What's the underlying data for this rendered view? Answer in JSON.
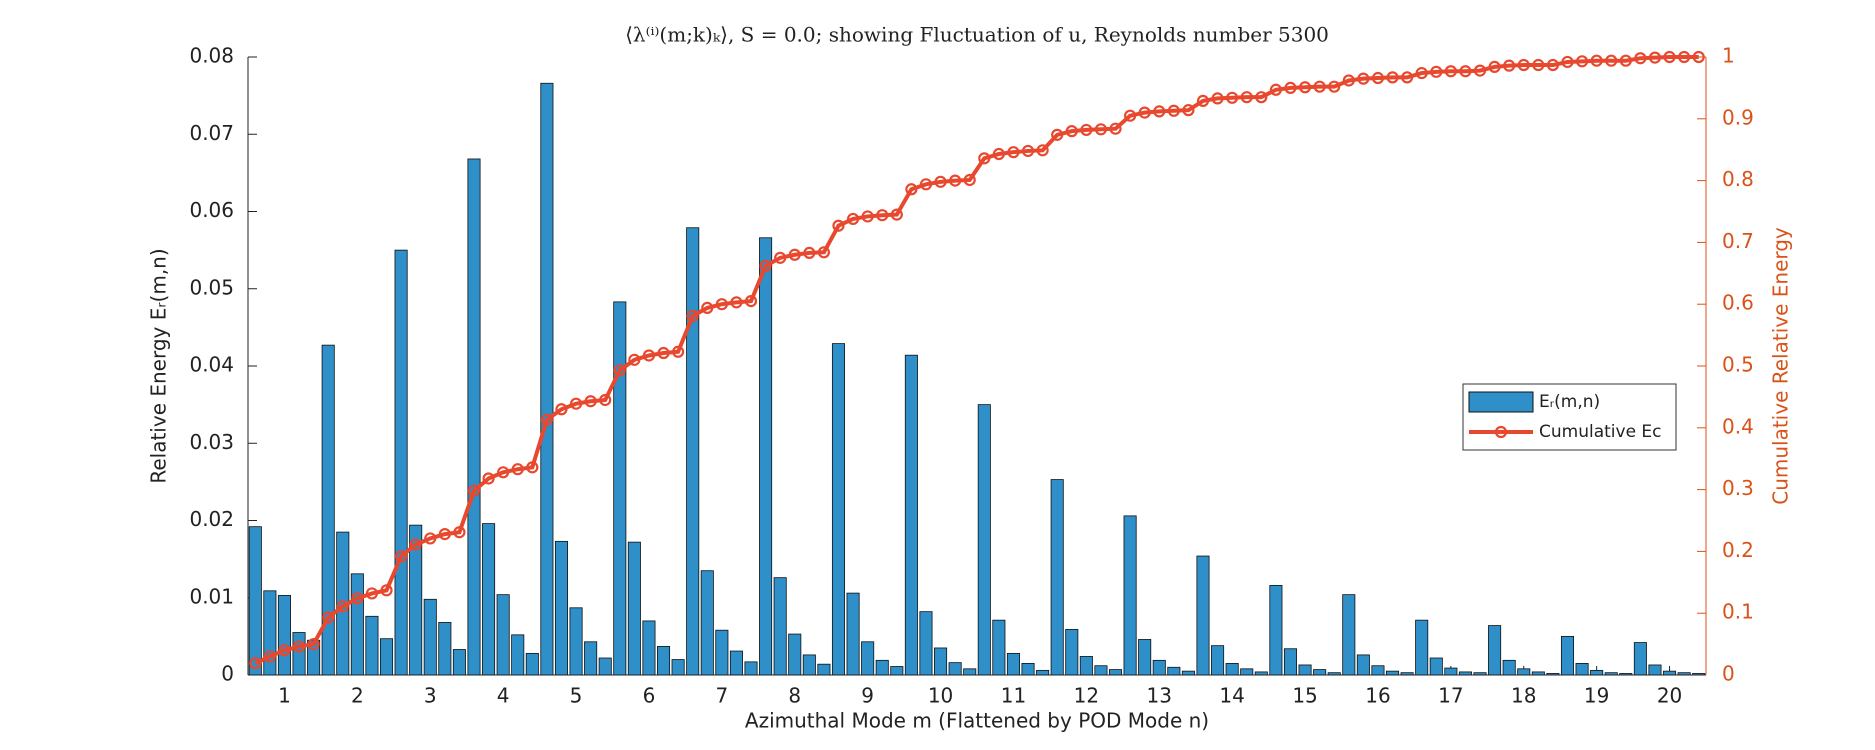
{
  "chart_data": {
    "type": "bar",
    "title": "⟨λ⁽ⁱ⁾(m;k)ₖ⟩, S = 0.0; showing Fluctuation of u, Reynolds number 5300",
    "xlabel": "Azimuthal Mode m (Flattened by POD Mode n)",
    "ylabel": "Relative Energy Eᵣ(m,n)",
    "y2label": "Cumulative Relative Energy",
    "categories": [
      null,
      null,
      "1",
      null,
      null,
      null,
      null,
      "2",
      null,
      null,
      null,
      null,
      "3",
      null,
      null,
      null,
      null,
      "4",
      null,
      null,
      null,
      null,
      "5",
      null,
      null,
      null,
      null,
      "6",
      null,
      null,
      null,
      null,
      "7",
      null,
      null,
      null,
      null,
      "8",
      null,
      null,
      null,
      null,
      "9",
      null,
      null,
      null,
      null,
      "10",
      null,
      null,
      null,
      null,
      "11",
      null,
      null,
      null,
      null,
      "12",
      null,
      null,
      null,
      null,
      "13",
      null,
      null,
      null,
      null,
      "14",
      null,
      null,
      null,
      null,
      "15",
      null,
      null,
      null,
      null,
      "16",
      null,
      null,
      null,
      null,
      "17",
      null,
      null,
      null,
      null,
      "18",
      null,
      null,
      null,
      null,
      "19",
      null,
      null,
      null,
      null,
      "20",
      null,
      null
    ],
    "series": [
      {
        "name": "Eᵣ(m,n)",
        "type": "bar",
        "color": "#2e8fc9",
        "values": [
          0.0192,
          0.0109,
          0.0103,
          0.0055,
          0.0045,
          0.0427,
          0.0185,
          0.0131,
          0.0076,
          0.0047,
          0.055,
          0.0194,
          0.0098,
          0.0068,
          0.0033,
          0.0668,
          0.0196,
          0.0104,
          0.0052,
          0.0028,
          0.0766,
          0.0173,
          0.0087,
          0.0043,
          0.0022,
          0.0483,
          0.0172,
          0.007,
          0.0037,
          0.002,
          0.0579,
          0.0135,
          0.0058,
          0.0031,
          0.0017,
          0.0566,
          0.0126,
          0.0053,
          0.0026,
          0.0014,
          0.0429,
          0.0106,
          0.0043,
          0.0019,
          0.0011,
          0.0414,
          0.0082,
          0.0035,
          0.0016,
          0.0008,
          0.035,
          0.0071,
          0.0028,
          0.0015,
          0.0006,
          0.0253,
          0.0059,
          0.0024,
          0.0012,
          0.0007,
          0.0206,
          0.0046,
          0.0019,
          0.001,
          0.0005,
          0.0154,
          0.0038,
          0.0015,
          0.0008,
          0.0004,
          0.0116,
          0.0034,
          0.0013,
          0.0007,
          0.0003,
          0.0104,
          0.0026,
          0.0012,
          0.0005,
          0.0003,
          0.0071,
          0.0022,
          0.0009,
          0.0004,
          0.0003,
          0.0064,
          0.0019,
          0.0008,
          0.0004,
          0.0002,
          0.005,
          0.0015,
          0.0006,
          0.0003,
          0.0002,
          0.0042,
          0.0013,
          0.0005,
          0.0003,
          0.0002
        ]
      },
      {
        "name": "Cumulative Eᴄ",
        "type": "line",
        "axis": "y2",
        "color": "#e8482e",
        "values": [
          0.019,
          0.03,
          0.04,
          0.046,
          0.05,
          0.093,
          0.111,
          0.124,
          0.132,
          0.137,
          0.192,
          0.211,
          0.221,
          0.228,
          0.231,
          0.298,
          0.318,
          0.328,
          0.333,
          0.336,
          0.413,
          0.43,
          0.439,
          0.443,
          0.445,
          0.493,
          0.51,
          0.517,
          0.521,
          0.523,
          0.581,
          0.594,
          0.6,
          0.603,
          0.605,
          0.662,
          0.675,
          0.68,
          0.683,
          0.684,
          0.727,
          0.738,
          0.742,
          0.744,
          0.745,
          0.786,
          0.794,
          0.798,
          0.8,
          0.801,
          0.836,
          0.843,
          0.846,
          0.848,
          0.849,
          0.874,
          0.88,
          0.882,
          0.883,
          0.884,
          0.905,
          0.91,
          0.912,
          0.913,
          0.914,
          0.929,
          0.933,
          0.934,
          0.935,
          0.935,
          0.947,
          0.95,
          0.951,
          0.952,
          0.952,
          0.962,
          0.965,
          0.966,
          0.967,
          0.967,
          0.974,
          0.976,
          0.977,
          0.977,
          0.978,
          0.984,
          0.986,
          0.987,
          0.987,
          0.987,
          0.992,
          0.993,
          0.994,
          0.994,
          0.994,
          0.998,
          0.999,
          1.0,
          1.0,
          1.0
        ]
      }
    ],
    "ylim": [
      0,
      0.08
    ],
    "yticks": [
      0,
      0.01,
      0.02,
      0.03,
      0.04,
      0.05,
      0.06,
      0.07,
      0.08
    ],
    "y2lim": [
      0,
      1
    ],
    "y2ticks": [
      0,
      0.1,
      0.2,
      0.3,
      0.4,
      0.5,
      0.6,
      0.7,
      0.8,
      0.9,
      1
    ],
    "y2color": "#d95319",
    "legend": "right"
  }
}
